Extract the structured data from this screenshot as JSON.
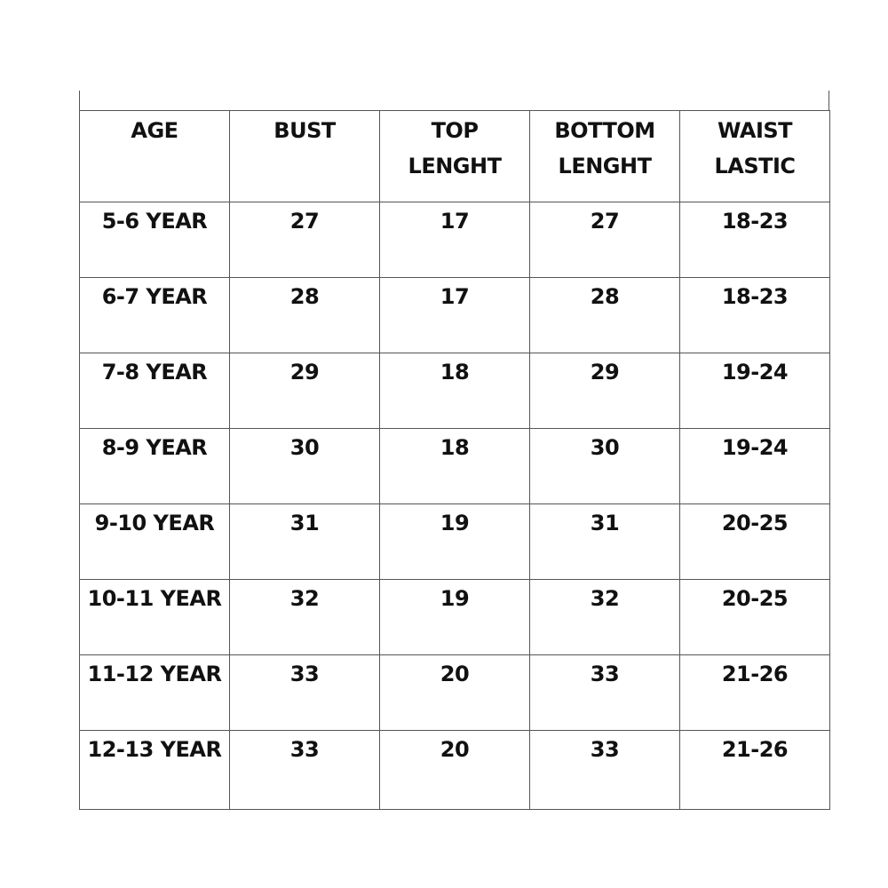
{
  "table": {
    "headers": [
      [
        "AGE"
      ],
      [
        "BUST"
      ],
      [
        "TOP",
        "LENGHT"
      ],
      [
        "BOTTOM",
        "LENGHT"
      ],
      [
        "WAIST",
        "LASTIC"
      ]
    ],
    "rows": [
      [
        "5-6 YEAR",
        "27",
        "17",
        "27",
        "18-23"
      ],
      [
        "6-7 YEAR",
        "28",
        "17",
        "28",
        "18-23"
      ],
      [
        "7-8 YEAR",
        "29",
        "18",
        "29",
        "19-24"
      ],
      [
        "8-9 YEAR",
        "30",
        "18",
        "30",
        "19-24"
      ],
      [
        "9-10 YEAR",
        "31",
        "19",
        "31",
        "20-25"
      ],
      [
        "10-11 YEAR",
        "32",
        "19",
        "32",
        "20-25"
      ],
      [
        "11-12 YEAR",
        "33",
        "20",
        "33",
        "21-26"
      ],
      [
        "12-13 YEAR",
        "33",
        "20",
        "33",
        "21-26"
      ]
    ]
  }
}
